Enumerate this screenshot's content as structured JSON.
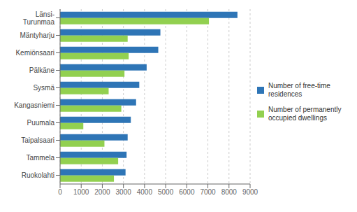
{
  "chart_data": {
    "type": "bar",
    "orientation": "horizontal",
    "categories": [
      "Länsi-\nTurunmaa",
      "Mäntyharju",
      "Kemiönsaari",
      "Pälkäne",
      "Sysmä",
      "Kangasniemi",
      "Puumala",
      "Taipalsaari",
      "Tammela",
      "Ruokolahti"
    ],
    "series": [
      {
        "name": "Number of free-time\nresidences",
        "color": "#2E75B6",
        "values": [
          8400,
          4750,
          4650,
          4100,
          3750,
          3600,
          3350,
          3200,
          3150,
          3100
        ]
      },
      {
        "name": "Number of permanently\noccupied dwellings",
        "color": "#92D050",
        "values": [
          7050,
          3200,
          3250,
          3050,
          2300,
          2900,
          1100,
          2100,
          2750,
          2550
        ]
      }
    ],
    "xlim": [
      0,
      9000
    ],
    "xticks": [
      0,
      1000,
      2000,
      3000,
      4000,
      5000,
      6000,
      7000,
      8000,
      9000
    ],
    "grid": true,
    "legend": "right"
  }
}
